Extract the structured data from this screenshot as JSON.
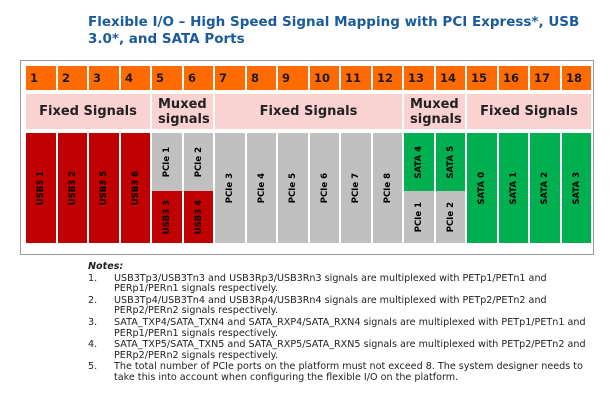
{
  "title": "Flexible I/O – High Speed Signal Mapping with PCI Express*, USB 3.0*, and SATA Ports",
  "lane_numbers": [
    "1",
    "2",
    "3",
    "4",
    "5",
    "6",
    "7",
    "8",
    "9",
    "10",
    "11",
    "12",
    "13",
    "14",
    "15",
    "16",
    "17",
    "18"
  ],
  "groups": [
    {
      "label": "Fixed Signals"
    },
    {
      "label": "Muxed signals"
    },
    {
      "label": "Fixed Signals"
    },
    {
      "label": "Muxed signals"
    },
    {
      "label": "Fixed Signals"
    }
  ],
  "lanes": [
    {
      "label": "USB3 1",
      "color": "#c00000"
    },
    {
      "label": "USB3 2",
      "color": "#c00000"
    },
    {
      "label": "USB3 5",
      "color": "#c00000"
    },
    {
      "label": "USB3 6",
      "color": "#c00000"
    },
    {
      "top": "PCIe 1",
      "top_color": "#c0c0c0",
      "bottom": "USB3 3",
      "bottom_color": "#c00000"
    },
    {
      "top": "PCIe 2",
      "top_color": "#c0c0c0",
      "bottom": "USB3 4",
      "bottom_color": "#c00000"
    },
    {
      "label": "PCIe 3",
      "color": "#c0c0c0"
    },
    {
      "label": "PCIe 4",
      "color": "#c0c0c0"
    },
    {
      "label": "PCIe 5",
      "color": "#c0c0c0"
    },
    {
      "label": "PCIe 6",
      "color": "#c0c0c0"
    },
    {
      "label": "PCIe 7",
      "color": "#c0c0c0"
    },
    {
      "label": "PCIe 8",
      "color": "#c0c0c0"
    },
    {
      "top": "SATA 4",
      "top_color": "#00b050",
      "bottom": "PCIe 1",
      "bottom_color": "#c0c0c0"
    },
    {
      "top": "SATA 5",
      "top_color": "#00b050",
      "bottom": "PCIe 2",
      "bottom_color": "#c0c0c0"
    },
    {
      "label": "SATA 0",
      "color": "#00b050"
    },
    {
      "label": "SATA 1",
      "color": "#00b050"
    },
    {
      "label": "SATA 2",
      "color": "#00b050"
    },
    {
      "label": "SATA 3",
      "color": "#00b050"
    }
  ],
  "colors": {
    "lane_header": "#ff6b00",
    "group_band": "#fbd2d2",
    "usb3": "#c00000",
    "pcie": "#c0c0c0",
    "sata": "#00b050",
    "title": "#1a5b9c"
  },
  "notes": {
    "heading": "Notes:",
    "items": [
      {
        "num": "1.",
        "text": "USB3Tp3/USB3Tn3 and USB3Rp3/USB3Rn3 signals are multiplexed with PETp1/PETn1 and PERp1/PERn1 signals respectively."
      },
      {
        "num": "2.",
        "text": "USB3Tp4/USB3Tn4 and USB3Rp4/USB3Rn4 signals are multiplexed with PETp2/PETn2 and PERp2/PERn2 signals respectively."
      },
      {
        "num": "3.",
        "text": "SATA_TXP4/SATA_TXN4 and SATA_RXP4/SATA_RXN4 signals are multiplexed with PETp1/PETn1 and PERp1/PERn1 signals respectively."
      },
      {
        "num": "4.",
        "text": "SATA_TXP5/SATA_TXN5 and SATA_RXP5/SATA_RXN5 signals are multiplexed with PETp2/PETn2 and PERp2/PERn2 signals respectively."
      },
      {
        "num": "5.",
        "text": "The total number of PCIe ports on the platform must not exceed 8. The system designer needs to take this into account when configuring the flexible I/O on the platform."
      }
    ]
  }
}
